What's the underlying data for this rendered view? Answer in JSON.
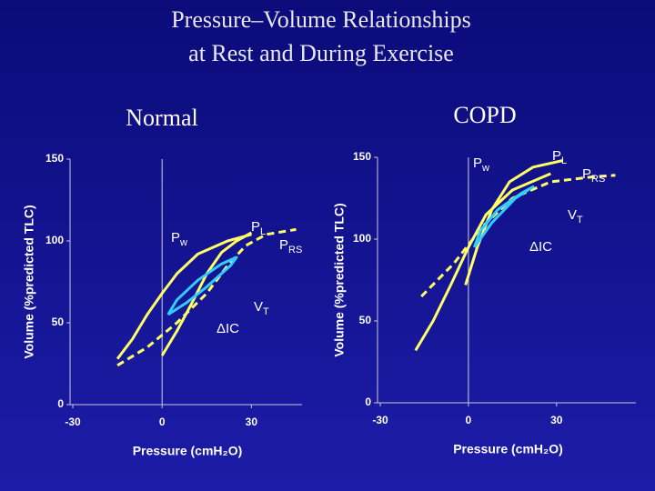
{
  "title": [
    "Pressure–Volume Relationships",
    "at Rest and During Exercise"
  ],
  "chart_data": [
    {
      "type": "line",
      "title": "Normal",
      "xlabel": "Pressure (cmH₂O)",
      "ylabel": "Volume (%predicted TLC)",
      "xlim": [
        -30,
        47
      ],
      "xticks": [
        -30,
        0,
        30
      ],
      "ylim": [
        0,
        150
      ],
      "yticks": [
        0,
        50,
        100,
        150
      ],
      "series": [
        {
          "color": "#ffff66",
          "x": [
            -15,
            -10,
            -5,
            0,
            5,
            12,
            22,
            30
          ],
          "values": [
            28,
            40,
            55,
            68,
            80,
            92,
            100,
            104
          ]
        },
        {
          "color": "#ffff66",
          "x": [
            0,
            5,
            10,
            15,
            20,
            25,
            30
          ],
          "values": [
            30,
            45,
            62,
            80,
            93,
            100,
            105
          ]
        },
        {
          "color": "#ffff66",
          "dashed": true,
          "x": [
            -15,
            -5,
            5,
            15,
            22,
            28,
            35,
            45
          ],
          "values": [
            24,
            35,
            50,
            68,
            85,
            97,
            104,
            107
          ]
        },
        {
          "color": "#33ccff",
          "x": [
            2,
            8,
            15,
            23,
            25,
            20,
            12,
            5,
            2
          ],
          "values": [
            55,
            62,
            72,
            85,
            90,
            86,
            76,
            64,
            55
          ]
        }
      ],
      "annotations": [
        {
          "main": "P",
          "sub": "w"
        },
        {
          "main": "P",
          "sub": "L"
        },
        {
          "main": "P",
          "sub": "RS"
        },
        {
          "main": "V",
          "sub": "T"
        },
        {
          "main": "ΔIC"
        }
      ]
    },
    {
      "type": "line",
      "title": "COPD",
      "xlabel": "Pressure (cmH₂O)",
      "ylabel": "Volume (%predicted TLC)",
      "xlim": [
        -30,
        57
      ],
      "xticks": [
        -30,
        0,
        30
      ],
      "ylim": [
        0,
        150
      ],
      "yticks": [
        0,
        50,
        100,
        150
      ],
      "series": [
        {
          "color": "#ffff66",
          "x": [
            -18,
            -12,
            -6,
            0,
            6,
            15,
            28
          ],
          "values": [
            32,
            50,
            72,
            95,
            115,
            130,
            140
          ]
        },
        {
          "color": "#ffff66",
          "x": [
            -1,
            3,
            8,
            14,
            22,
            32
          ],
          "values": [
            72,
            95,
            118,
            135,
            144,
            148
          ]
        },
        {
          "color": "#ffff66",
          "dashed": true,
          "x": [
            -16,
            -5,
            5,
            15,
            28,
            42,
            50
          ],
          "values": [
            65,
            85,
            108,
            125,
            135,
            138,
            139
          ]
        },
        {
          "color": "#33ccff",
          "x": [
            2,
            8,
            16,
            22,
            18,
            10,
            4,
            2
          ],
          "values": [
            95,
            110,
            125,
            132,
            128,
            118,
            105,
            95
          ]
        }
      ],
      "annotations": [
        {
          "main": "P",
          "sub": "w"
        },
        {
          "main": "P",
          "sub": "L"
        },
        {
          "main": "P",
          "sub": "RS"
        },
        {
          "main": "V",
          "sub": "T"
        },
        {
          "main": "ΔIC"
        }
      ]
    }
  ]
}
